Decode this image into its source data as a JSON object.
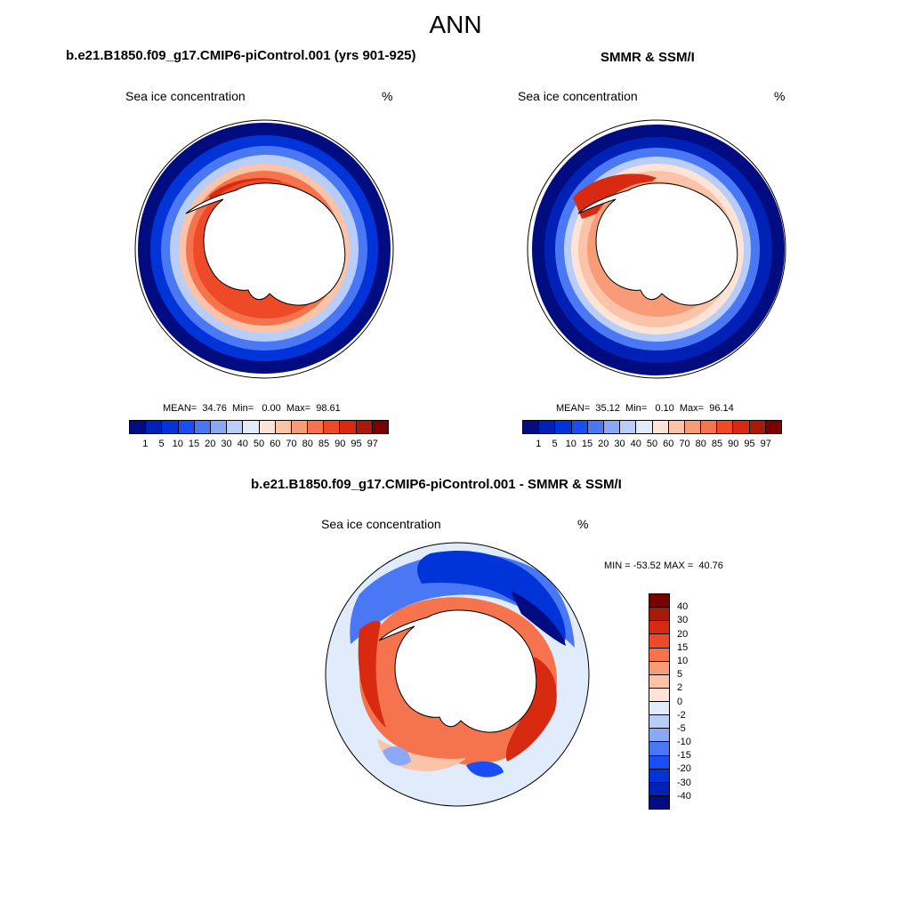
{
  "title": "ANN",
  "panels": {
    "model": {
      "title": "b.e21.B1850.f09_g17.CMIP6-piControl.001 (yrs 901-925)",
      "variable": "Sea ice concentration",
      "units": "%",
      "mean_label": "MEAN=",
      "mean": "34.76",
      "min_label": "Min=",
      "min": "0.00",
      "max_label": "Max=",
      "max": "98.61"
    },
    "obs": {
      "title": "SMMR & SSM/I",
      "variable": "Sea ice concentration",
      "units": "%",
      "mean_label": "MEAN=",
      "mean": "35.12",
      "min_label": "Min=",
      "min": "0.10",
      "max_label": "Max=",
      "max": "96.14"
    },
    "diff": {
      "title": "b.e21.B1850.f09_g17.CMIP6-piControl.001 - SMMR & SSM/I",
      "variable": "Sea ice concentration",
      "units": "%",
      "minmax": "MIN = -53.52 MAX =  40.76"
    }
  },
  "colorbar_conc": {
    "ticks": [
      "1",
      "5",
      "10",
      "15",
      "20",
      "30",
      "40",
      "50",
      "60",
      "70",
      "80",
      "85",
      "90",
      "95",
      "97"
    ],
    "colors": [
      "#000c80",
      "#0021b5",
      "#0034d9",
      "#1a4ef5",
      "#4a78f5",
      "#8aa8f5",
      "#b8cdf7",
      "#e0ecfb",
      "#fde4d6",
      "#fbc3a8",
      "#f89c78",
      "#f5734d",
      "#ee4a27",
      "#d82a10",
      "#a81a08",
      "#7a0000"
    ]
  },
  "colorbar_diff": {
    "ticks": [
      "40",
      "30",
      "20",
      "15",
      "10",
      "5",
      "2",
      "0",
      "-2",
      "-5",
      "-10",
      "-15",
      "-20",
      "-30",
      "-40"
    ],
    "colors": [
      "#7a0000",
      "#a81a08",
      "#d82a10",
      "#ee4a27",
      "#f5734d",
      "#f89c78",
      "#fbc3a8",
      "#fde4d6",
      "#e0ecfb",
      "#b8cdf7",
      "#8aa8f5",
      "#4a78f5",
      "#1a4ef5",
      "#0034d9",
      "#0021b5",
      "#000c80"
    ]
  }
}
